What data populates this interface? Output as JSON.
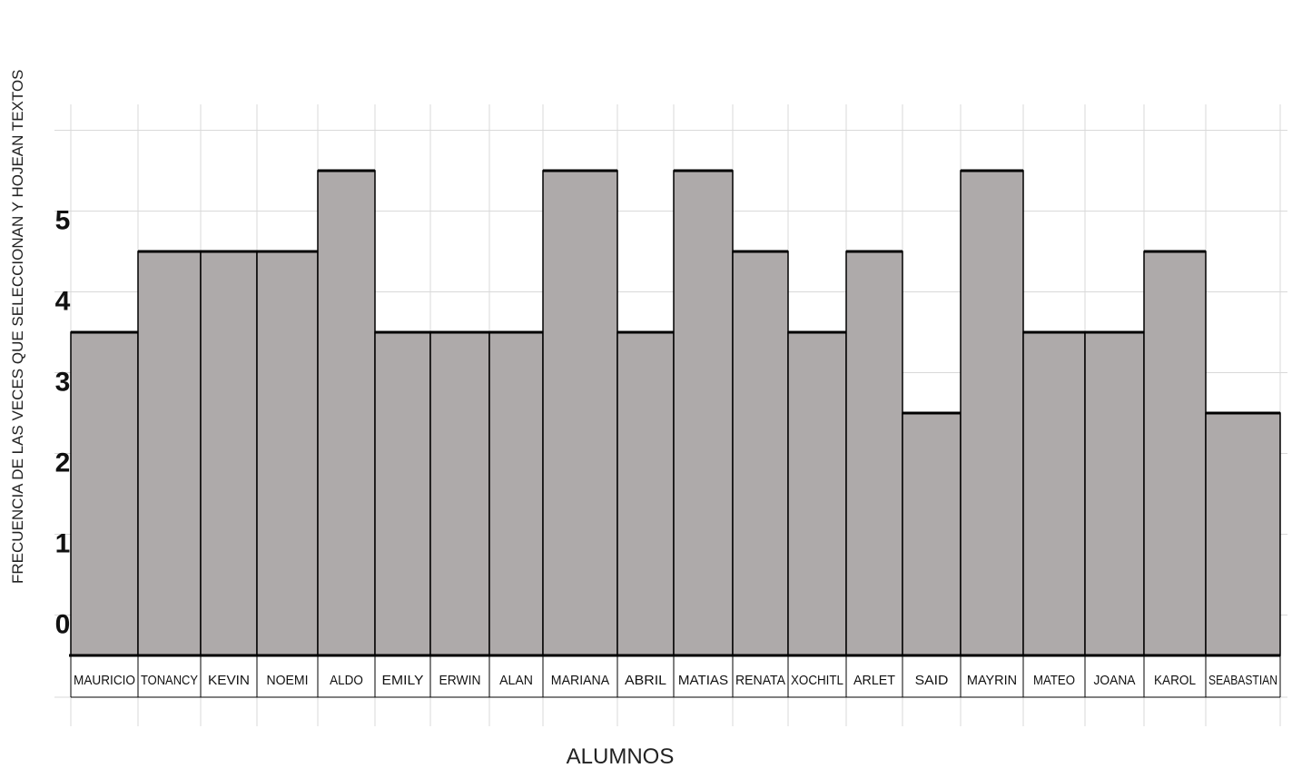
{
  "chart_data": {
    "type": "bar",
    "ylabel": "FRECUENCIA DE LAS VECES QUE SELECCIONAN Y HOJEAN TEXTOS",
    "xlabel": "ALUMNOS",
    "categories": [
      "MAURICIO",
      "TONANCY",
      "KEVIN",
      "NOEMI",
      "ALDO",
      "EMILY",
      "ERWIN",
      "ALAN",
      "MARIANA",
      "ABRIL",
      "MATIAS",
      "RENATA",
      "XOCHITL",
      "ARLET",
      "SAID",
      "MAYRIN",
      "MATEO",
      "JOANA",
      "KAROL",
      "SEABASTIAN"
    ],
    "values": [
      4,
      5,
      5,
      5,
      6,
      4,
      4,
      4,
      6,
      4,
      6,
      5,
      4,
      5,
      3,
      6,
      4,
      4,
      5,
      3
    ],
    "ytick_labels": [
      "0",
      "1",
      "2",
      "3",
      "4",
      "5"
    ],
    "ylim": [
      0,
      6.5
    ],
    "grid": true,
    "bar_color": "#aeaaaa",
    "edge_color": "#000000"
  }
}
